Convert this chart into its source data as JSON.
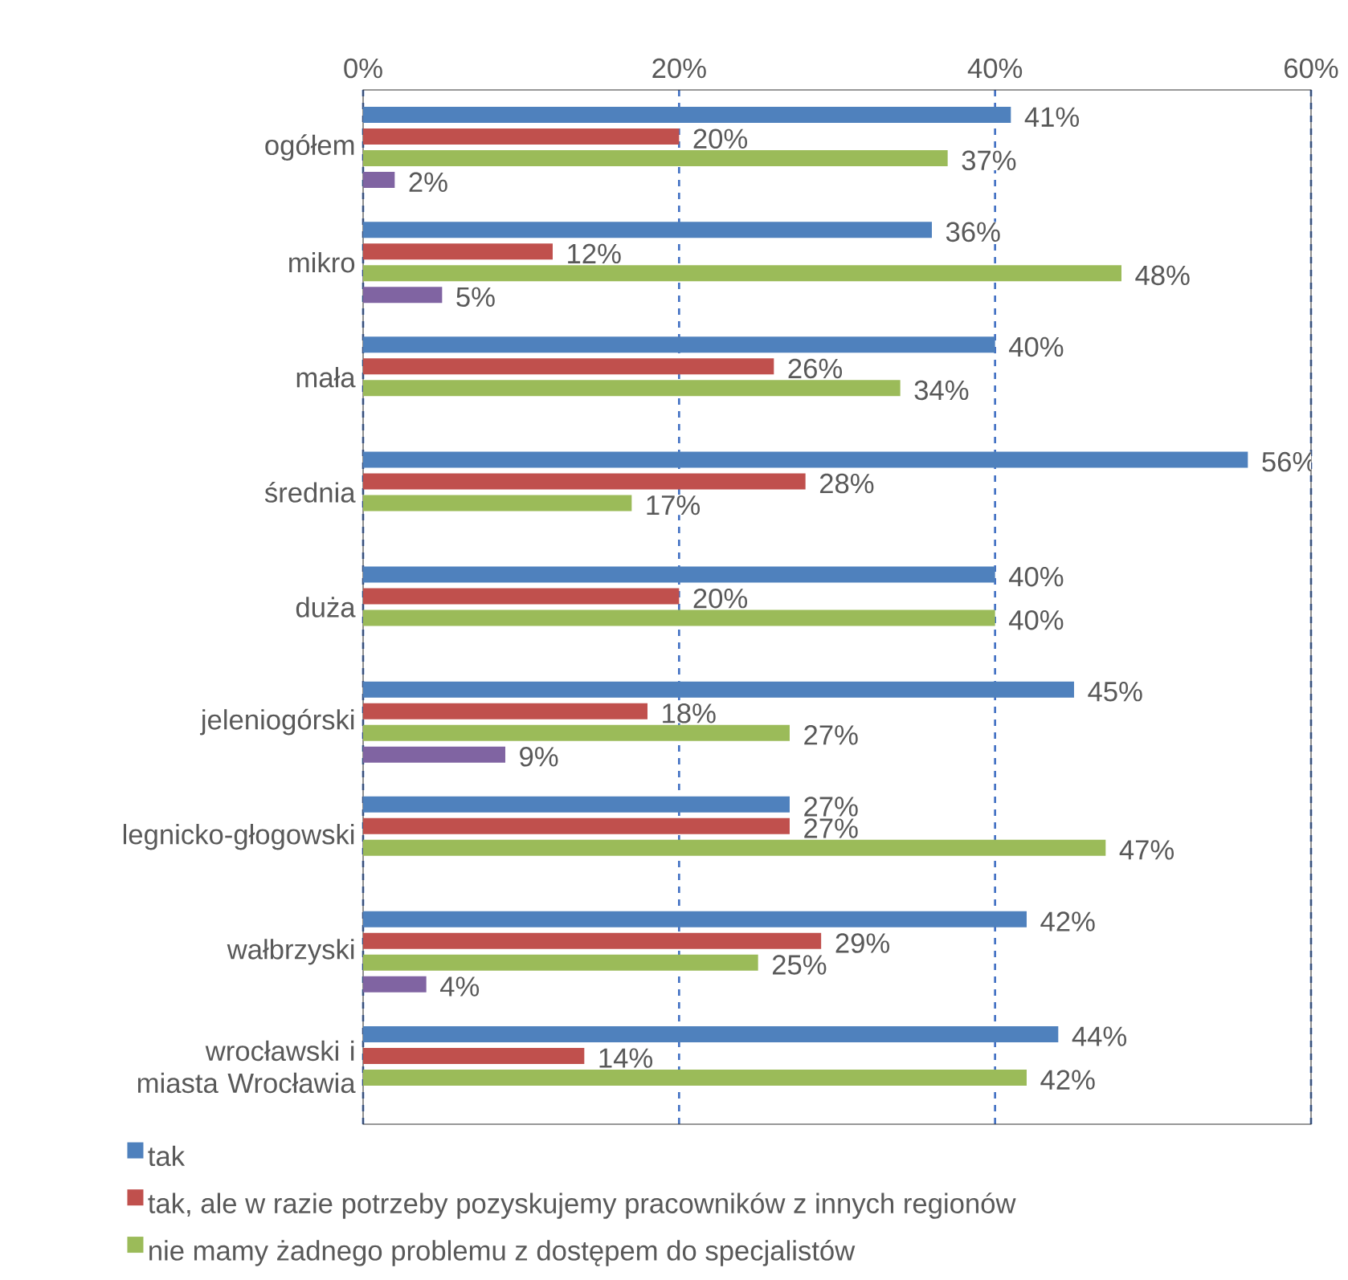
{
  "chart_data": {
    "type": "bar",
    "orientation": "horizontal",
    "categories": [
      "ogółem",
      "mikro",
      "mała",
      "średnia",
      "duża",
      "jeleniogórski",
      "legnicko-głogowski",
      "wałbrzyski",
      "wrocławski i miasta Wrocławia"
    ],
    "series": [
      {
        "name": "tak",
        "color": "#4f81bd",
        "values": [
          41,
          36,
          40,
          56,
          40,
          45,
          27,
          42,
          44
        ],
        "value_labels": [
          "41%",
          "36%",
          "40%",
          "56%",
          "40%",
          "45%",
          "27%",
          "42%",
          "44%"
        ]
      },
      {
        "name": "tak, ale w razie potrzeby pozyskujemy pracowników z innych regionów",
        "color": "#c0504d",
        "values": [
          20,
          12,
          26,
          28,
          20,
          18,
          27,
          29,
          14
        ],
        "value_labels": [
          "20%",
          "12%",
          "26%",
          "28%",
          "20%",
          "18%",
          "27%",
          "29%",
          "14%"
        ]
      },
      {
        "name": "nie mamy żadnego problemu z dostępem do specjalistów",
        "color": "#9bbb59",
        "values": [
          37,
          48,
          34,
          17,
          40,
          27,
          47,
          25,
          42
        ],
        "value_labels": [
          "37%",
          "48%",
          "34%",
          "17%",
          "40%",
          "27%",
          "47%",
          "25%",
          "42%"
        ]
      },
      {
        "color": "#8064a2",
        "values": [
          2,
          5,
          null,
          null,
          null,
          9,
          null,
          4,
          null
        ],
        "value_labels": [
          "2%",
          "5%",
          null,
          null,
          null,
          "9%",
          null,
          "4%",
          null
        ]
      }
    ],
    "xlim": [
      0,
      60
    ],
    "xticks": [
      {
        "value": 0,
        "label": "0%"
      },
      {
        "value": 20,
        "label": "20%"
      },
      {
        "value": 40,
        "label": "40%"
      },
      {
        "value": 60,
        "label": "60%"
      }
    ],
    "grid": "x",
    "legend": "bottom"
  }
}
